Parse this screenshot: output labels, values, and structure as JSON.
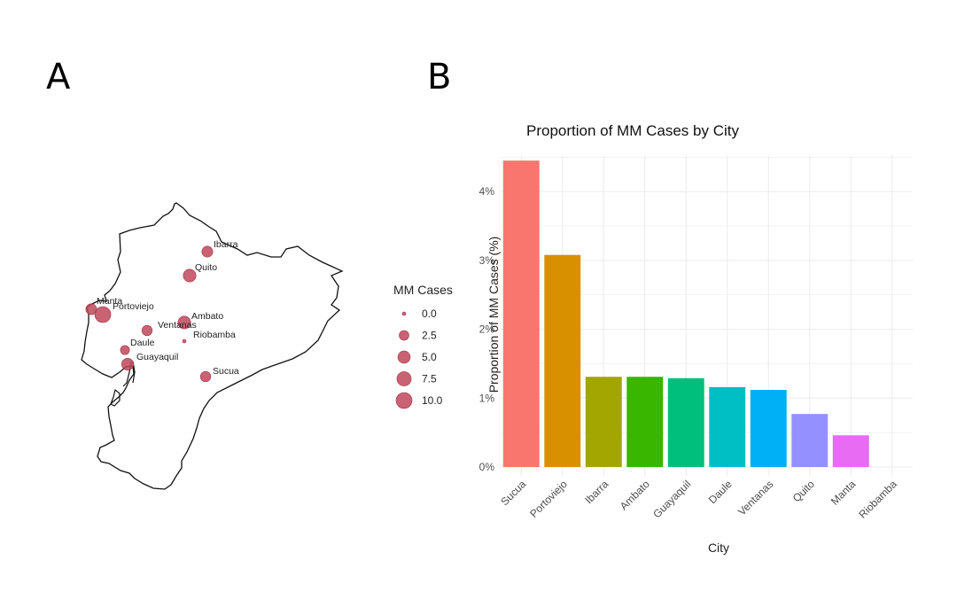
{
  "panels": {
    "a_label": "A",
    "b_label": "B"
  },
  "map": {
    "legend_title": "MM Cases",
    "legend_values": [
      0.0,
      2.5,
      5.0,
      7.5,
      10.0
    ],
    "legend_labels": [
      "0.0",
      "2.5",
      "5.0",
      "7.5",
      "10.0"
    ],
    "point_color": "#c0485a",
    "cities": [
      {
        "name": "Ibarra",
        "cases": 3.5
      },
      {
        "name": "Quito",
        "cases": 5.5
      },
      {
        "name": "Manta",
        "cases": 3.5
      },
      {
        "name": "Portoviejo",
        "cases": 10.0
      },
      {
        "name": "Ambato",
        "cases": 5.5
      },
      {
        "name": "Ventanas",
        "cases": 3.0
      },
      {
        "name": "Riobamba",
        "cases": 0.0
      },
      {
        "name": "Daule",
        "cases": 2.0
      },
      {
        "name": "Guayaquil",
        "cases": 4.5
      },
      {
        "name": "Sucua",
        "cases": 3.0
      }
    ]
  },
  "chart_data": {
    "type": "bar",
    "title": "Proportion of MM Cases by City",
    "xlabel": "City",
    "ylabel": "Proportion of MM Cases (%)",
    "categories": [
      "Sucua",
      "Portoviejo",
      "Ibarra",
      "Ambato",
      "Guayaquil",
      "Daule",
      "Ventanas",
      "Quito",
      "Manta",
      "Riobamba"
    ],
    "values": [
      4.45,
      3.08,
      1.31,
      1.31,
      1.29,
      1.16,
      1.12,
      0.77,
      0.46,
      0.0
    ],
    "colors": [
      "#F8766D",
      "#D89000",
      "#A3A500",
      "#39B600",
      "#00BF7D",
      "#00BFC4",
      "#00B0F6",
      "#9590FF",
      "#E76BF3",
      "#FF62BC"
    ],
    "ylim": [
      0,
      4.6
    ],
    "yticks": [
      0,
      1,
      2,
      3,
      4
    ],
    "ytick_labels": [
      "0%",
      "1%",
      "2%",
      "3%",
      "4%"
    ],
    "grid": true,
    "legend": "none"
  }
}
